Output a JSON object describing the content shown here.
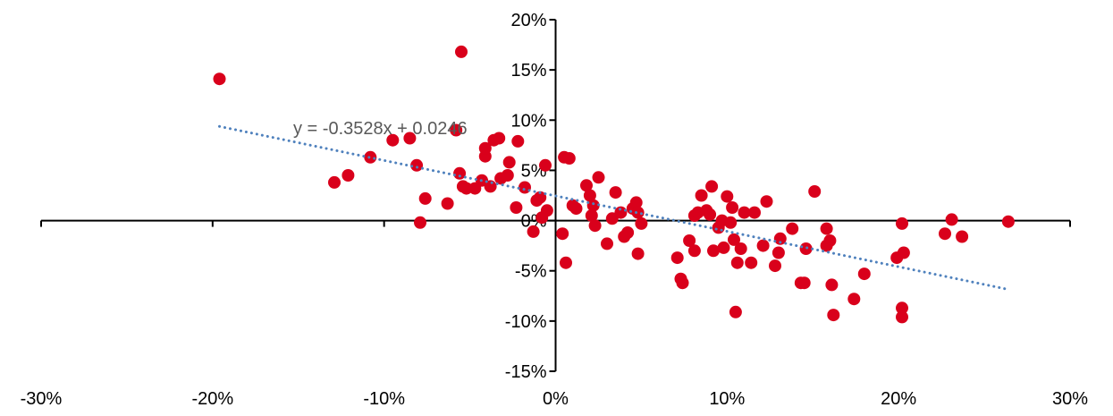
{
  "chart_data": {
    "type": "scatter",
    "title": "",
    "xlabel": "",
    "ylabel": "",
    "xlim": [
      -0.3,
      0.3
    ],
    "ylim": [
      -0.15,
      0.2
    ],
    "x_ticks": [
      -0.3,
      -0.2,
      -0.1,
      0.0,
      0.1,
      0.2,
      0.3
    ],
    "y_ticks": [
      -0.15,
      -0.1,
      -0.05,
      0.0,
      0.05,
      0.1,
      0.15,
      0.2
    ],
    "x_tick_labels": [
      "-30%",
      "-20%",
      "-10%",
      "0%",
      "10%",
      "20%",
      "30%"
    ],
    "y_tick_labels": [
      "-15%",
      "-10%",
      "-5%",
      "0%",
      "5%",
      "10%",
      "15%",
      "20%"
    ],
    "grid": false,
    "legend": "none",
    "series": [
      {
        "marker_color": "#d9001b",
        "points": [
          [
            -0.196,
            0.141
          ],
          [
            -0.055,
            0.168
          ],
          [
            -0.056,
            0.047
          ],
          [
            -0.063,
            0.017
          ],
          [
            -0.085,
            0.082
          ],
          [
            -0.081,
            0.055
          ],
          [
            -0.079,
            -0.002
          ],
          [
            -0.058,
            0.09
          ],
          [
            -0.052,
            0.032
          ],
          [
            -0.041,
            0.064
          ],
          [
            -0.041,
            0.072
          ],
          [
            -0.036,
            0.08
          ],
          [
            -0.033,
            0.082
          ],
          [
            -0.032,
            0.042
          ],
          [
            -0.022,
            0.079
          ],
          [
            -0.027,
            0.058
          ],
          [
            -0.028,
            0.045
          ],
          [
            -0.018,
            0.033
          ],
          [
            -0.095,
            0.08
          ],
          [
            -0.108,
            0.063
          ],
          [
            -0.121,
            0.045
          ],
          [
            -0.129,
            0.038
          ],
          [
            -0.076,
            0.022
          ],
          [
            -0.023,
            0.013
          ],
          [
            -0.013,
            -0.011
          ],
          [
            -0.008,
            0.003
          ],
          [
            -0.005,
            0.01
          ],
          [
            -0.006,
            0.055
          ],
          [
            -0.009,
            0.023
          ],
          [
            -0.038,
            0.034
          ],
          [
            -0.043,
            0.04
          ],
          [
            -0.047,
            0.032
          ],
          [
            -0.054,
            0.034
          ],
          [
            -0.011,
            0.02
          ],
          [
            0.005,
            0.063
          ],
          [
            0.008,
            0.062
          ],
          [
            0.004,
            -0.013
          ],
          [
            0.006,
            -0.042
          ],
          [
            0.01,
            0.015
          ],
          [
            0.012,
            0.012
          ],
          [
            0.018,
            0.035
          ],
          [
            0.02,
            0.025
          ],
          [
            0.022,
            0.015
          ],
          [
            0.025,
            0.043
          ],
          [
            0.021,
            0.005
          ],
          [
            0.023,
            -0.005
          ],
          [
            0.03,
            -0.023
          ],
          [
            0.033,
            0.002
          ],
          [
            0.035,
            0.028
          ],
          [
            0.038,
            0.008
          ],
          [
            0.04,
            -0.016
          ],
          [
            0.042,
            -0.012
          ],
          [
            0.045,
            0.012
          ],
          [
            0.047,
            0.018
          ],
          [
            0.048,
            0.008
          ],
          [
            0.05,
            -0.003
          ],
          [
            0.048,
            -0.033
          ],
          [
            0.071,
            -0.037
          ],
          [
            0.073,
            -0.058
          ],
          [
            0.074,
            -0.062
          ],
          [
            0.078,
            -0.02
          ],
          [
            0.081,
            -0.03
          ],
          [
            0.081,
            0.005
          ],
          [
            0.083,
            0.008
          ],
          [
            0.085,
            0.025
          ],
          [
            0.088,
            0.01
          ],
          [
            0.09,
            0.006
          ],
          [
            0.091,
            0.034
          ],
          [
            0.092,
            -0.03
          ],
          [
            0.095,
            -0.007
          ],
          [
            0.097,
            0.0
          ],
          [
            0.098,
            -0.027
          ],
          [
            0.1,
            0.024
          ],
          [
            0.102,
            -0.002
          ],
          [
            0.103,
            0.013
          ],
          [
            0.104,
            -0.019
          ],
          [
            0.105,
            -0.091
          ],
          [
            0.106,
            -0.042
          ],
          [
            0.108,
            -0.028
          ],
          [
            0.11,
            0.008
          ],
          [
            0.114,
            -0.042
          ],
          [
            0.116,
            0.008
          ],
          [
            0.121,
            -0.025
          ],
          [
            0.123,
            0.019
          ],
          [
            0.128,
            -0.045
          ],
          [
            0.13,
            -0.032
          ],
          [
            0.131,
            -0.018
          ],
          [
            0.138,
            -0.008
          ],
          [
            0.143,
            -0.062
          ],
          [
            0.146,
            -0.028
          ],
          [
            0.151,
            0.029
          ],
          [
            0.158,
            -0.008
          ],
          [
            0.16,
            -0.02
          ],
          [
            0.161,
            -0.064
          ],
          [
            0.162,
            -0.094
          ],
          [
            0.174,
            -0.078
          ],
          [
            0.18,
            -0.053
          ],
          [
            0.199,
            -0.037
          ],
          [
            0.202,
            -0.003
          ],
          [
            0.203,
            -0.032
          ],
          [
            0.202,
            -0.087
          ],
          [
            0.202,
            -0.096
          ],
          [
            0.227,
            -0.013
          ],
          [
            0.231,
            0.001
          ],
          [
            0.237,
            -0.016
          ],
          [
            0.264,
            -0.001
          ],
          [
            0.158,
            -0.025
          ],
          [
            0.145,
            -0.062
          ]
        ]
      }
    ],
    "trendline": {
      "slope": -0.3528,
      "intercept": 0.0246,
      "x_range": [
        -0.196,
        0.264
      ],
      "color": "#4f81bd",
      "style": "dotted"
    },
    "annotations": [
      {
        "text": "y = -0.3528x + 0.0246"
      }
    ]
  }
}
